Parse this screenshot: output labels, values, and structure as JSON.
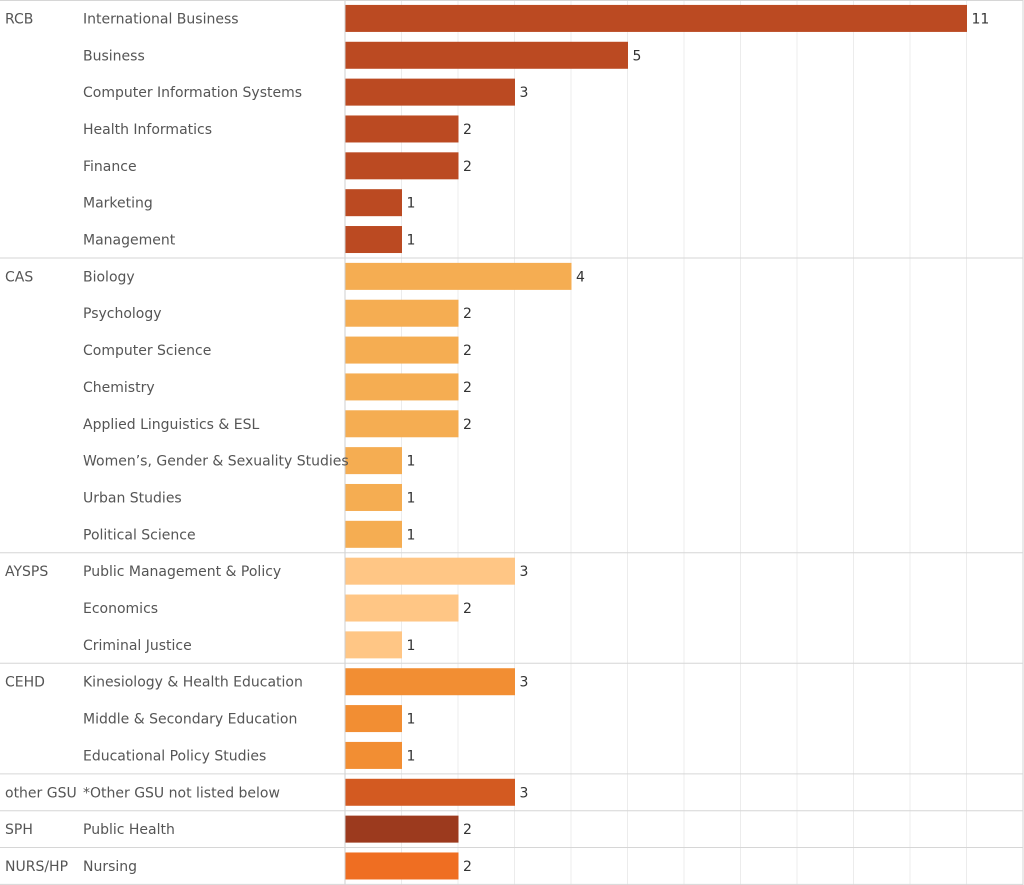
{
  "chart_data": {
    "type": "bar",
    "orientation": "horizontal",
    "title": "",
    "xlabel": "",
    "ylabel": "",
    "xlim": [
      0,
      12
    ],
    "grid": true,
    "colors": {
      "RCB": "#bb4a22",
      "CAS": "#f5ad52",
      "AYSPS": "#ffc685",
      "CEHD": "#f28e33",
      "other GSU": "#d35a21",
      "SPH": "#9c3a1e",
      "NURS/HP": "#ef6e22"
    },
    "groups": [
      {
        "name": "RCB",
        "items": [
          {
            "label": "International Business",
            "value": 11
          },
          {
            "label": "Business",
            "value": 5
          },
          {
            "label": "Computer Information Systems",
            "value": 3
          },
          {
            "label": "Health Informatics",
            "value": 2
          },
          {
            "label": "Finance",
            "value": 2
          },
          {
            "label": "Marketing",
            "value": 1
          },
          {
            "label": "Management",
            "value": 1
          }
        ]
      },
      {
        "name": "CAS",
        "items": [
          {
            "label": "Biology",
            "value": 4
          },
          {
            "label": "Psychology",
            "value": 2
          },
          {
            "label": "Computer Science",
            "value": 2
          },
          {
            "label": "Chemistry",
            "value": 2
          },
          {
            "label": "Applied Linguistics & ESL",
            "value": 2
          },
          {
            "label": "Women’s, Gender & Sexuality Studies",
            "value": 1
          },
          {
            "label": "Urban Studies",
            "value": 1
          },
          {
            "label": "Political Science",
            "value": 1
          }
        ]
      },
      {
        "name": "AYSPS",
        "items": [
          {
            "label": "Public Management & Policy",
            "value": 3
          },
          {
            "label": "Economics",
            "value": 2
          },
          {
            "label": "Criminal Justice",
            "value": 1
          }
        ]
      },
      {
        "name": "CEHD",
        "items": [
          {
            "label": "Kinesiology & Health Education",
            "value": 3
          },
          {
            "label": "Middle & Secondary Education",
            "value": 1
          },
          {
            "label": "Educational Policy Studies",
            "value": 1
          }
        ]
      },
      {
        "name": "other GSU",
        "items": [
          {
            "label": "*Other GSU not listed below",
            "value": 3
          }
        ]
      },
      {
        "name": "SPH",
        "items": [
          {
            "label": "Public Health",
            "value": 2
          }
        ]
      },
      {
        "name": "NURS/HP",
        "items": [
          {
            "label": "Nursing",
            "value": 2
          }
        ]
      }
    ]
  }
}
